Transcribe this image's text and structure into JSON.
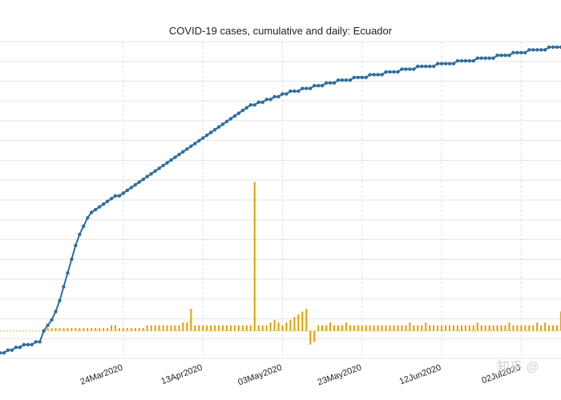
{
  "chart_data": {
    "type": "line",
    "title": "COVID-19 cases, cumulative and daily: Ecuador",
    "xlabel": "",
    "ylabel": "",
    "categories": [],
    "x_tick_labels": [
      "24Mar2020",
      "13Apr2020",
      "03May2020",
      "23May2020",
      "12Jun2020",
      "02Jul2020"
    ],
    "x_tick_days": [
      20,
      40,
      60,
      80,
      100,
      120
    ],
    "x_range_days": [
      -11,
      130
    ],
    "y_range_relative": [
      -0.1,
      1.05
    ],
    "zero_line_level": 0.0,
    "series": [
      {
        "name": "cumulative",
        "color": "#2e6e9e",
        "values": [
          [
            -11,
            -0.08
          ],
          [
            -10,
            -0.08
          ],
          [
            -9,
            -0.07
          ],
          [
            -8,
            -0.07
          ],
          [
            -7,
            -0.06
          ],
          [
            -6,
            -0.06
          ],
          [
            -5,
            -0.05
          ],
          [
            -4,
            -0.05
          ],
          [
            -3,
            -0.05
          ],
          [
            -2,
            -0.04
          ],
          [
            -1,
            -0.04
          ],
          [
            0,
            0.0
          ],
          [
            1,
            0.02
          ],
          [
            2,
            0.04
          ],
          [
            3,
            0.07
          ],
          [
            4,
            0.11
          ],
          [
            5,
            0.16
          ],
          [
            6,
            0.21
          ],
          [
            7,
            0.26
          ],
          [
            8,
            0.31
          ],
          [
            9,
            0.35
          ],
          [
            10,
            0.38
          ],
          [
            11,
            0.41
          ],
          [
            12,
            0.43
          ],
          [
            13,
            0.44
          ],
          [
            14,
            0.45
          ],
          [
            15,
            0.46
          ],
          [
            16,
            0.47
          ],
          [
            17,
            0.48
          ],
          [
            18,
            0.49
          ],
          [
            19,
            0.49
          ],
          [
            20,
            0.5
          ],
          [
            21,
            0.51
          ],
          [
            22,
            0.52
          ],
          [
            23,
            0.53
          ],
          [
            24,
            0.54
          ],
          [
            25,
            0.55
          ],
          [
            26,
            0.56
          ],
          [
            27,
            0.57
          ],
          [
            28,
            0.58
          ],
          [
            29,
            0.59
          ],
          [
            30,
            0.6
          ],
          [
            31,
            0.61
          ],
          [
            32,
            0.62
          ],
          [
            33,
            0.63
          ],
          [
            34,
            0.64
          ],
          [
            35,
            0.65
          ],
          [
            36,
            0.66
          ],
          [
            37,
            0.67
          ],
          [
            38,
            0.68
          ],
          [
            39,
            0.69
          ],
          [
            40,
            0.7
          ],
          [
            41,
            0.71
          ],
          [
            42,
            0.72
          ],
          [
            43,
            0.73
          ],
          [
            44,
            0.74
          ],
          [
            45,
            0.75
          ],
          [
            46,
            0.76
          ],
          [
            47,
            0.77
          ],
          [
            48,
            0.78
          ],
          [
            49,
            0.79
          ],
          [
            50,
            0.8
          ],
          [
            51,
            0.81
          ],
          [
            52,
            0.82
          ],
          [
            53,
            0.82
          ],
          [
            54,
            0.83
          ],
          [
            55,
            0.83
          ],
          [
            56,
            0.84
          ],
          [
            57,
            0.84
          ],
          [
            58,
            0.85
          ],
          [
            59,
            0.85
          ],
          [
            60,
            0.86
          ],
          [
            61,
            0.86
          ],
          [
            62,
            0.87
          ],
          [
            63,
            0.87
          ],
          [
            64,
            0.87
          ],
          [
            65,
            0.88
          ],
          [
            66,
            0.88
          ],
          [
            67,
            0.88
          ],
          [
            68,
            0.89
          ],
          [
            69,
            0.89
          ],
          [
            70,
            0.89
          ],
          [
            71,
            0.9
          ],
          [
            72,
            0.9
          ],
          [
            73,
            0.9
          ],
          [
            74,
            0.91
          ],
          [
            75,
            0.91
          ],
          [
            76,
            0.91
          ],
          [
            77,
            0.91
          ],
          [
            78,
            0.92
          ],
          [
            79,
            0.92
          ],
          [
            80,
            0.92
          ],
          [
            81,
            0.92
          ],
          [
            82,
            0.93
          ],
          [
            83,
            0.93
          ],
          [
            84,
            0.93
          ],
          [
            85,
            0.93
          ],
          [
            86,
            0.94
          ],
          [
            87,
            0.94
          ],
          [
            88,
            0.94
          ],
          [
            89,
            0.94
          ],
          [
            90,
            0.95
          ],
          [
            91,
            0.95
          ],
          [
            92,
            0.95
          ],
          [
            93,
            0.95
          ],
          [
            94,
            0.96
          ],
          [
            95,
            0.96
          ],
          [
            96,
            0.96
          ],
          [
            97,
            0.96
          ],
          [
            98,
            0.96
          ],
          [
            99,
            0.97
          ],
          [
            100,
            0.97
          ],
          [
            101,
            0.97
          ],
          [
            102,
            0.97
          ],
          [
            103,
            0.97
          ],
          [
            104,
            0.98
          ],
          [
            105,
            0.98
          ],
          [
            106,
            0.98
          ],
          [
            107,
            0.98
          ],
          [
            108,
            0.98
          ],
          [
            109,
            0.99
          ],
          [
            110,
            0.99
          ],
          [
            111,
            0.99
          ],
          [
            112,
            0.99
          ],
          [
            113,
            0.99
          ],
          [
            114,
            1.0
          ],
          [
            115,
            1.0
          ],
          [
            116,
            1.0
          ],
          [
            117,
            1.0
          ],
          [
            118,
            1.01
          ],
          [
            119,
            1.01
          ],
          [
            120,
            1.01
          ],
          [
            121,
            1.01
          ],
          [
            122,
            1.02
          ],
          [
            123,
            1.02
          ],
          [
            124,
            1.02
          ],
          [
            125,
            1.02
          ],
          [
            126,
            1.02
          ],
          [
            127,
            1.03
          ],
          [
            128,
            1.03
          ],
          [
            129,
            1.03
          ],
          [
            130,
            1.03
          ]
        ]
      },
      {
        "name": "daily",
        "color": "#e0a000",
        "values": [
          [
            0,
            0.0
          ],
          [
            1,
            0.01
          ],
          [
            2,
            0.01
          ],
          [
            3,
            0.01
          ],
          [
            4,
            0.01
          ],
          [
            5,
            0.01
          ],
          [
            6,
            0.01
          ],
          [
            7,
            0.01
          ],
          [
            8,
            0.01
          ],
          [
            9,
            0.01
          ],
          [
            10,
            0.01
          ],
          [
            11,
            0.01
          ],
          [
            12,
            0.01
          ],
          [
            13,
            0.01
          ],
          [
            14,
            0.01
          ],
          [
            15,
            0.01
          ],
          [
            16,
            0.01
          ],
          [
            17,
            0.02
          ],
          [
            18,
            0.02
          ],
          [
            19,
            0.01
          ],
          [
            20,
            0.01
          ],
          [
            21,
            0.01
          ],
          [
            22,
            0.01
          ],
          [
            23,
            0.01
          ],
          [
            24,
            0.01
          ],
          [
            25,
            0.01
          ],
          [
            26,
            0.02
          ],
          [
            27,
            0.02
          ],
          [
            28,
            0.02
          ],
          [
            29,
            0.02
          ],
          [
            30,
            0.02
          ],
          [
            31,
            0.02
          ],
          [
            32,
            0.02
          ],
          [
            33,
            0.02
          ],
          [
            34,
            0.02
          ],
          [
            35,
            0.03
          ],
          [
            36,
            0.03
          ],
          [
            37,
            0.08
          ],
          [
            38,
            0.02
          ],
          [
            39,
            0.02
          ],
          [
            40,
            0.02
          ],
          [
            41,
            0.02
          ],
          [
            42,
            0.02
          ],
          [
            43,
            0.02
          ],
          [
            44,
            0.02
          ],
          [
            45,
            0.02
          ],
          [
            46,
            0.02
          ],
          [
            47,
            0.02
          ],
          [
            48,
            0.02
          ],
          [
            49,
            0.02
          ],
          [
            50,
            0.02
          ],
          [
            51,
            0.02
          ],
          [
            52,
            0.02
          ],
          [
            53,
            0.54
          ],
          [
            54,
            0.02
          ],
          [
            55,
            0.02
          ],
          [
            56,
            0.02
          ],
          [
            57,
            0.03
          ],
          [
            58,
            0.04
          ],
          [
            59,
            0.03
          ],
          [
            60,
            0.02
          ],
          [
            61,
            0.03
          ],
          [
            62,
            0.04
          ],
          [
            63,
            0.05
          ],
          [
            64,
            0.06
          ],
          [
            65,
            0.07
          ],
          [
            66,
            0.08
          ],
          [
            67,
            -0.05
          ],
          [
            68,
            -0.04
          ],
          [
            69,
            0.02
          ],
          [
            70,
            0.02
          ],
          [
            71,
            0.02
          ],
          [
            72,
            0.03
          ],
          [
            73,
            0.02
          ],
          [
            74,
            0.02
          ],
          [
            75,
            0.02
          ],
          [
            76,
            0.03
          ],
          [
            77,
            0.02
          ],
          [
            78,
            0.02
          ],
          [
            79,
            0.02
          ],
          [
            80,
            0.02
          ],
          [
            81,
            0.02
          ],
          [
            82,
            0.02
          ],
          [
            83,
            0.02
          ],
          [
            84,
            0.02
          ],
          [
            85,
            0.02
          ],
          [
            86,
            0.02
          ],
          [
            87,
            0.02
          ],
          [
            88,
            0.02
          ],
          [
            89,
            0.02
          ],
          [
            90,
            0.02
          ],
          [
            91,
            0.02
          ],
          [
            92,
            0.03
          ],
          [
            93,
            0.02
          ],
          [
            94,
            0.02
          ],
          [
            95,
            0.02
          ],
          [
            96,
            0.03
          ],
          [
            97,
            0.02
          ],
          [
            98,
            0.02
          ],
          [
            99,
            0.02
          ],
          [
            100,
            0.02
          ],
          [
            101,
            0.02
          ],
          [
            102,
            0.02
          ],
          [
            103,
            0.02
          ],
          [
            104,
            0.02
          ],
          [
            105,
            0.02
          ],
          [
            106,
            0.02
          ],
          [
            107,
            0.02
          ],
          [
            108,
            0.02
          ],
          [
            109,
            0.03
          ],
          [
            110,
            0.02
          ],
          [
            111,
            0.02
          ],
          [
            112,
            0.02
          ],
          [
            113,
            0.02
          ],
          [
            114,
            0.02
          ],
          [
            115,
            0.02
          ],
          [
            116,
            0.02
          ],
          [
            117,
            0.03
          ],
          [
            118,
            0.02
          ],
          [
            119,
            0.02
          ],
          [
            120,
            0.02
          ],
          [
            121,
            0.02
          ],
          [
            122,
            0.02
          ],
          [
            123,
            0.02
          ],
          [
            124,
            0.03
          ],
          [
            125,
            0.02
          ],
          [
            126,
            0.03
          ],
          [
            127,
            0.02
          ],
          [
            128,
            0.02
          ],
          [
            129,
            0.02
          ],
          [
            130,
            0.07
          ]
        ]
      }
    ],
    "grid": true,
    "legend": "none"
  },
  "watermark": {
    "text": "知乎 @"
  }
}
